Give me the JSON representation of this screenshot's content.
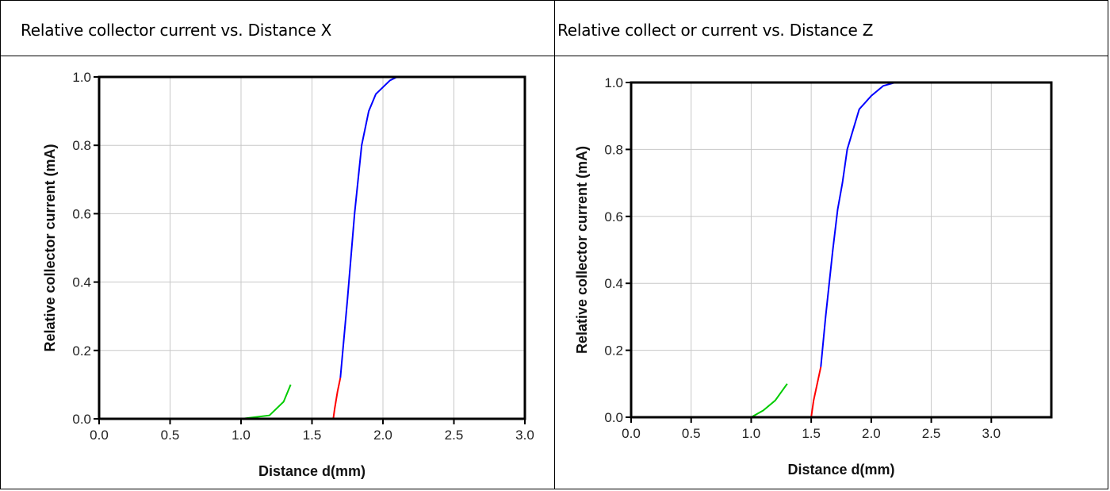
{
  "chart_data": [
    {
      "type": "line",
      "title": "Relative collector current vs. Distance X",
      "xlabel": "Distance d(mm)",
      "ylabel": "Relative collector current (mA)",
      "xlim": [
        0,
        3.0
      ],
      "ylim": [
        0,
        1.0
      ],
      "xticks": [
        "0.0",
        "0.5",
        "1.0",
        "1.5",
        "2.0",
        "2.5",
        "3.0"
      ],
      "yticks": [
        "0.0",
        "0.2",
        "0.4",
        "0.6",
        "0.8",
        "1.0"
      ],
      "grid": true,
      "series": [
        {
          "color": "#00cc00",
          "x": [
            0.0,
            0.8,
            1.0,
            1.2,
            1.3,
            1.35
          ],
          "y": [
            0.0,
            0.0,
            0.0,
            0.01,
            0.05,
            0.1
          ]
        },
        {
          "color": "#ff0000",
          "x": [
            1.65,
            1.66,
            1.68,
            1.7
          ],
          "y": [
            0.0,
            0.03,
            0.08,
            0.12
          ]
        },
        {
          "color": "#0000ff",
          "x": [
            1.7,
            1.75,
            1.8,
            1.85,
            1.9,
            1.95,
            2.0,
            2.05,
            2.1,
            2.2,
            2.3,
            3.0
          ],
          "y": [
            0.12,
            0.35,
            0.6,
            0.8,
            0.9,
            0.95,
            0.97,
            0.99,
            1.0,
            1.0,
            1.0,
            1.0
          ]
        }
      ]
    },
    {
      "type": "line",
      "title": "Relative collect or current vs. Distance Z",
      "xlabel": "Distance d(mm)",
      "ylabel": "Relative collector current (mA)",
      "xlim": [
        0,
        3.5
      ],
      "ylim": [
        0,
        1.0
      ],
      "xticks": [
        "0.0",
        "0.5",
        "1.0",
        "1.5",
        "2.0",
        "2.5",
        "3.0"
      ],
      "yticks": [
        "0.0",
        "0.2",
        "0.4",
        "0.6",
        "0.8",
        "1.0"
      ],
      "grid": true,
      "series": [
        {
          "color": "#00cc00",
          "x": [
            0.0,
            0.8,
            1.0,
            1.1,
            1.2,
            1.3
          ],
          "y": [
            0.0,
            0.0,
            0.0,
            0.02,
            0.05,
            0.1
          ]
        },
        {
          "color": "#ff0000",
          "x": [
            1.5,
            1.52,
            1.55,
            1.58
          ],
          "y": [
            0.0,
            0.05,
            0.1,
            0.15
          ]
        },
        {
          "color": "#0000ff",
          "x": [
            1.58,
            1.62,
            1.68,
            1.72,
            1.76,
            1.8,
            1.85,
            1.9,
            2.0,
            2.1,
            2.2,
            2.35,
            3.5
          ],
          "y": [
            0.15,
            0.3,
            0.5,
            0.62,
            0.7,
            0.8,
            0.86,
            0.92,
            0.96,
            0.99,
            1.0,
            1.0,
            1.0
          ]
        }
      ]
    }
  ]
}
